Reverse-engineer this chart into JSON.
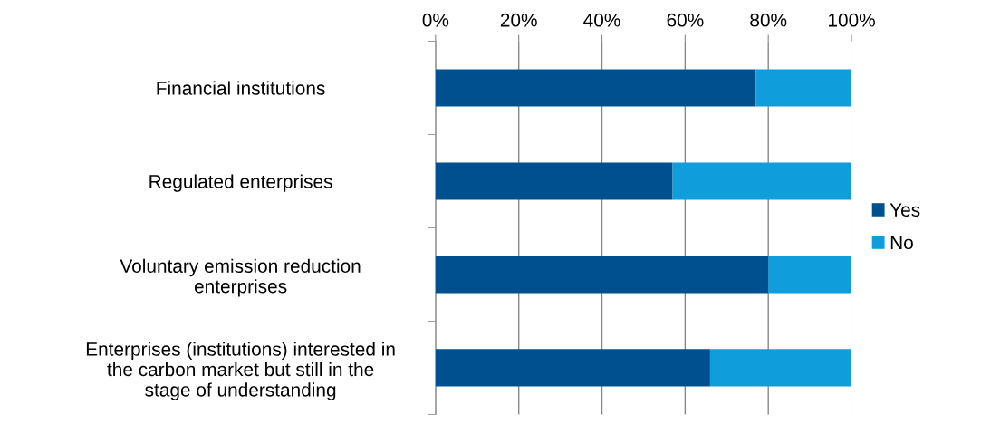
{
  "chart_data": {
    "type": "bar",
    "orientation": "horizontal",
    "stacked": true,
    "categories": [
      "Financial institutions",
      "Regulated enterprises",
      "Voluntary emission reduction\nenterprises",
      "Enterprises (institutions) interested in\nthe carbon market but still in the\nstage of understanding"
    ],
    "series": [
      {
        "name": "Yes",
        "color": "#00508f",
        "values": [
          77,
          57,
          80,
          66
        ]
      },
      {
        "name": "No",
        "color": "#0f9ddb",
        "values": [
          23,
          43,
          20,
          34
        ]
      }
    ],
    "xlim": [
      0,
      100
    ],
    "xticks": [
      {
        "value": 0,
        "label": "0%"
      },
      {
        "value": 20,
        "label": "20%"
      },
      {
        "value": 40,
        "label": "40%"
      },
      {
        "value": 60,
        "label": "60%"
      },
      {
        "value": 80,
        "label": "80%"
      },
      {
        "value": 100,
        "label": "100%"
      }
    ],
    "grid": "x",
    "legend": "right"
  }
}
